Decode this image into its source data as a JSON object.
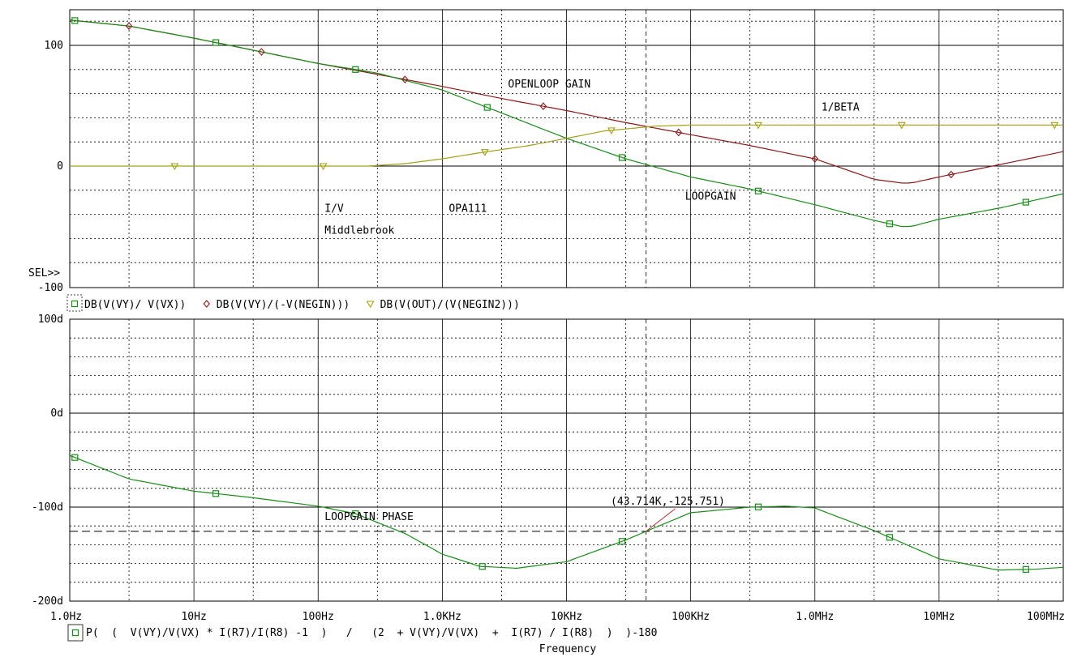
{
  "chart_data": [
    {
      "type": "line",
      "panel": "magnitude",
      "x_scale": "log",
      "xlim": [
        1,
        100000000
      ],
      "ylim": [
        -100,
        130
      ],
      "y_ticks": [
        {
          "value": 100,
          "label": "100"
        },
        {
          "value": 0,
          "label": "0"
        },
        {
          "value": -100,
          "label": "-100"
        }
      ],
      "grid": true,
      "sel_marker": "SEL>>",
      "annotations": [
        {
          "text": "OPENLOOP GAIN",
          "x": 3000,
          "y": 65
        },
        {
          "text": "1/BETA",
          "x": 1000000,
          "y": 46
        },
        {
          "text": "LOOPGAIN",
          "x": 80000,
          "y": -28
        },
        {
          "text": "I/V",
          "x": 100,
          "y": -38
        },
        {
          "text": "OPA111",
          "x": 1000,
          "y": -38
        },
        {
          "text": "Middlebrook",
          "x": 100,
          "y": -56
        }
      ],
      "legend": [
        {
          "label": "DB(V(VY)/ V(VX))",
          "series": "loopgain",
          "marker": "square"
        },
        {
          "label": "DB(V(VY)/(-V(NEGIN)))",
          "series": "openloop",
          "marker": "diamond"
        },
        {
          "label": "DB(V(OUT)/(V(NEGIN2)))",
          "series": "beta",
          "marker": "triangle"
        }
      ],
      "series": [
        {
          "id": "openloop",
          "name": "DB(V(VY)/(-V(NEGIN)))",
          "color": "#8b1a1a",
          "marker": "diamond",
          "x": [
            1,
            3,
            10,
            30,
            100,
            300,
            1000,
            3000,
            10000,
            30000,
            100000,
            300000,
            1000000,
            3000000,
            5000000,
            6000000,
            10000000,
            30000000,
            100000000
          ],
          "y": [
            121,
            116,
            106,
            96,
            85,
            76,
            66,
            56,
            46,
            36,
            26,
            17,
            6,
            -11,
            -14,
            -14,
            -9,
            1,
            12
          ],
          "markers_x": [
            3,
            35,
            500,
            6500,
            80000,
            1000000,
            12500000
          ]
        },
        {
          "id": "loopgain",
          "name": "DB(V(VY)/ V(VX))",
          "color": "#1a8c1a",
          "marker": "square",
          "x": [
            1,
            3,
            10,
            30,
            100,
            200,
            300,
            1000,
            3000,
            10000,
            30000,
            100000,
            300000,
            1000000,
            3000000,
            5000000,
            6000000,
            10000000,
            30000000,
            100000000
          ],
          "y": [
            121,
            116,
            106,
            96,
            85,
            80,
            77,
            63,
            44,
            23,
            6,
            -9,
            -19,
            -32,
            -45,
            -50,
            -50,
            -44,
            -35,
            -23
          ],
          "markers_x": [
            1.1,
            15,
            200,
            2300,
            28000,
            350000,
            4000000,
            50000000
          ]
        },
        {
          "id": "beta",
          "name": "DB(V(OUT)/(V(NEGIN2)))",
          "color": "#a39e12",
          "marker": "triangle",
          "x": [
            1,
            100,
            250,
            500,
            1000,
            2000,
            5000,
            10000,
            20000,
            50000,
            100000,
            1000000,
            100000000
          ],
          "y": [
            0,
            0,
            0,
            2,
            6,
            11,
            17,
            23,
            29,
            33,
            34,
            34,
            34
          ],
          "markers_x": [
            7,
            110,
            2200,
            23000,
            350000,
            5000000,
            85000000
          ]
        }
      ]
    },
    {
      "type": "line",
      "panel": "phase",
      "x_scale": "log",
      "xlim": [
        1,
        100000000
      ],
      "ylim": [
        -200,
        100
      ],
      "xlabel": "Frequency",
      "x_ticks": [
        "1.0Hz",
        "10Hz",
        "100Hz",
        "1.0KHz",
        "10KHz",
        "100KHz",
        "1.0MHz",
        "10MHz",
        "100MHz"
      ],
      "y_ticks": [
        {
          "value": 100,
          "label": "100d"
        },
        {
          "value": 0,
          "label": "0d"
        },
        {
          "value": -100,
          "label": "-100d"
        },
        {
          "value": -200,
          "label": "-200d"
        }
      ],
      "grid": true,
      "reference_line": {
        "y": -125.751
      },
      "cursor": {
        "x": 43714,
        "y": -125.751,
        "label": "(43.714K,-125.751)"
      },
      "annotations": [
        {
          "text": "LOOPGAIN PHASE",
          "x": 100,
          "y": -114
        }
      ],
      "legend": [
        {
          "label": "P(  (  V(VY)/V(VX) * I(R7)/I(R8) -1  )   /   (2  + V(VY)/V(VX)  +  I(R7) / I(R8)  )  )-180",
          "series": "phase",
          "marker": "square"
        }
      ],
      "series": [
        {
          "id": "phase",
          "name": "P(  (  V(VY)/V(VX) * I(R7)/I(R8) -1  )   /   (2  + V(VY)/V(VX)  +  I(R7) / I(R8)  )  )-180",
          "color": "#1a8c1a",
          "marker": "square",
          "x": [
            1,
            3,
            10,
            30,
            100,
            200,
            500,
            1000,
            2000,
            4000,
            10000,
            30000,
            43714,
            100000,
            300000,
            600000,
            1000000,
            3000000,
            10000000,
            30000000,
            60000000,
            100000000
          ],
          "y": [
            -45,
            -70,
            -83,
            -90,
            -99,
            -107,
            -128,
            -150,
            -163,
            -165,
            -158,
            -135,
            -125.751,
            -106,
            -100,
            -99,
            -101,
            -125,
            -155,
            -167,
            -166,
            -164
          ],
          "markers_x": [
            1.1,
            15,
            200,
            2100,
            28000,
            350000,
            4000000,
            50000000
          ]
        }
      ]
    }
  ]
}
